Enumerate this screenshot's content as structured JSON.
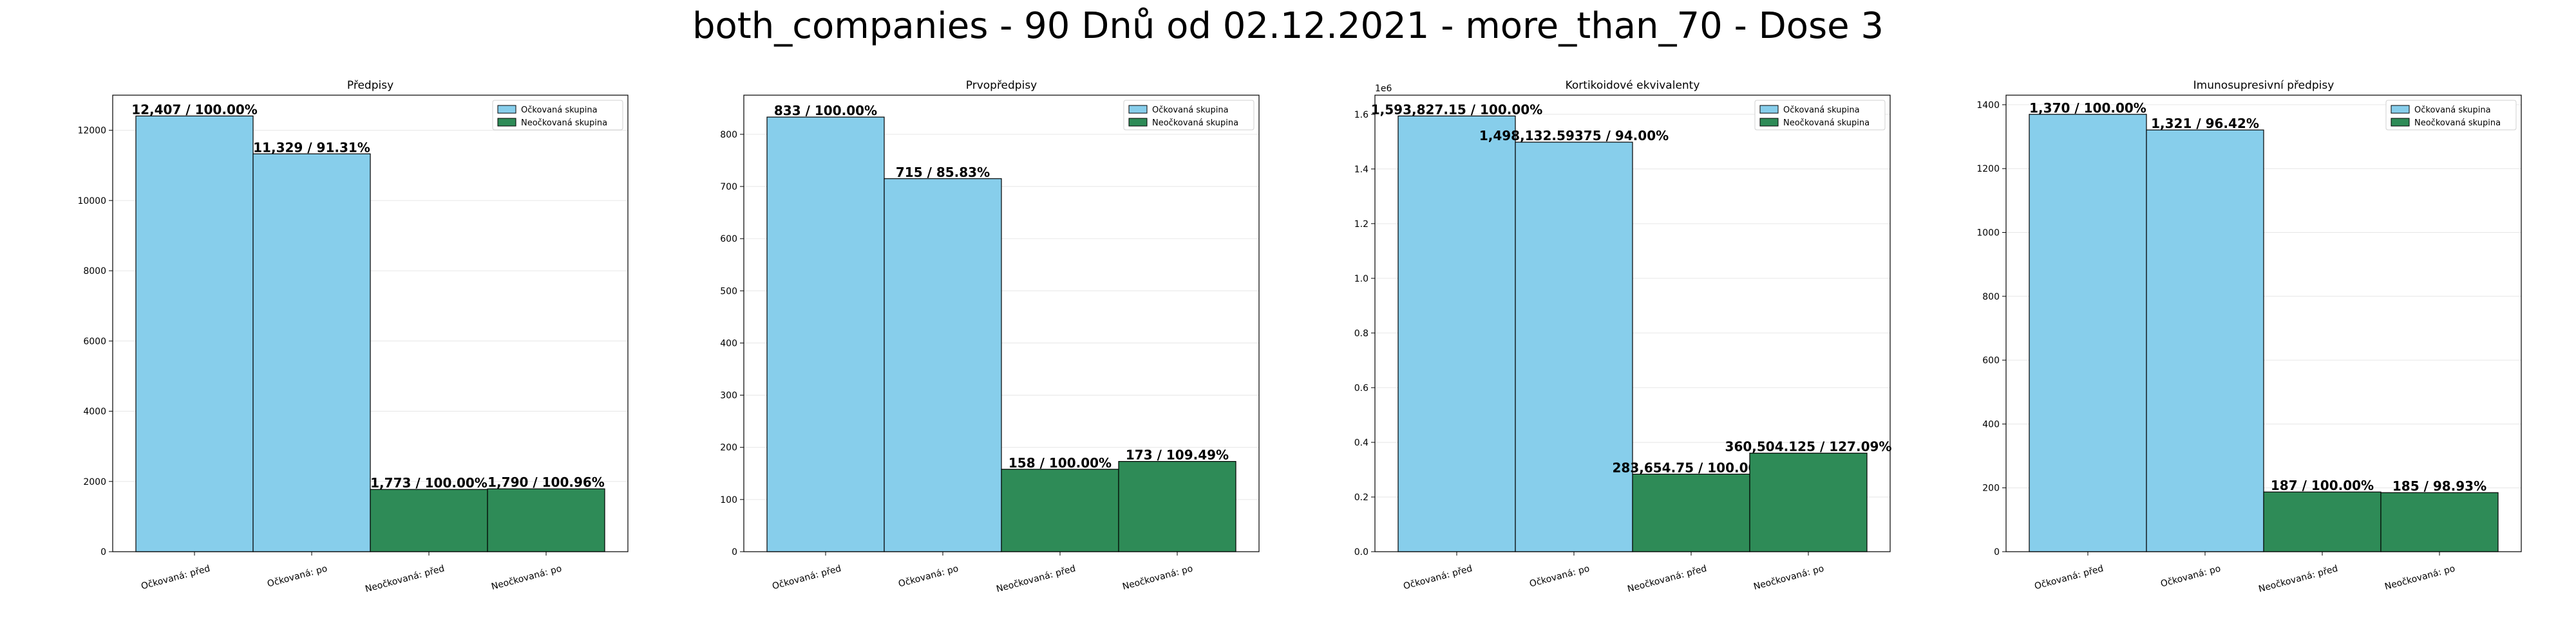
{
  "figure_title": "both_companies - 90 Dnů od 02.12.2021 - more_than_70 - Dose 3",
  "colors": {
    "vaccinated": "#87ceeb",
    "unvaccinated": "#2e8b57",
    "edge": "#000000",
    "grid": "#e6e6e6"
  },
  "chart_data": [
    {
      "type": "bar",
      "title": "Předpisy",
      "categories": [
        "Očkovaná: před",
        "Očkovaná: po",
        "Neočkovaná: před",
        "Neočkovaná: po"
      ],
      "values": [
        12407,
        11329,
        1773,
        1790
      ],
      "value_labels": [
        "12,407 / 100.00%",
        "11,329 / 91.31%",
        "1,773 / 100.00%",
        "1,790 / 100.96%"
      ],
      "groups": [
        "Očkovaná skupina",
        "Očkovaná skupina",
        "Neočkovaná skupina",
        "Neočkovaná skupina"
      ],
      "legend": [
        "Očkovaná skupina",
        "Neočkovaná skupina"
      ],
      "legend_position": "top-right",
      "ylim": [
        0,
        13000
      ],
      "yticks": [
        0,
        2000,
        4000,
        6000,
        8000,
        10000,
        12000
      ],
      "ytick_labels": [
        "0",
        "2000",
        "4000",
        "6000",
        "8000",
        "10000",
        "12000"
      ],
      "scale_label": "",
      "grid": true
    },
    {
      "type": "bar",
      "title": "Prvopředpisy",
      "categories": [
        "Očkovaná: před",
        "Očkovaná: po",
        "Neočkovaná: před",
        "Neočkovaná: po"
      ],
      "values": [
        833,
        715,
        158,
        173
      ],
      "value_labels": [
        "833 / 100.00%",
        "715 / 85.83%",
        "158 / 100.00%",
        "173 / 109.49%"
      ],
      "groups": [
        "Očkovaná skupina",
        "Očkovaná skupina",
        "Neočkovaná skupina",
        "Neočkovaná skupina"
      ],
      "legend": [
        "Očkovaná skupina",
        "Neočkovaná skupina"
      ],
      "legend_position": "top-right",
      "ylim": [
        0,
        875
      ],
      "yticks": [
        0,
        100,
        200,
        300,
        400,
        500,
        600,
        700,
        800
      ],
      "ytick_labels": [
        "0",
        "100",
        "200",
        "300",
        "400",
        "500",
        "600",
        "700",
        "800"
      ],
      "scale_label": "",
      "grid": true
    },
    {
      "type": "bar",
      "title": "Kortikoidové ekvivalenty",
      "categories": [
        "Očkovaná: před",
        "Očkovaná: po",
        "Neočkovaná: před",
        "Neočkovaná: po"
      ],
      "values": [
        1593827.15,
        1498132.59375,
        283654.75,
        360504.125
      ],
      "value_labels": [
        "1,593,827.15 / 100.00%",
        "1,498,132.59375 / 94.00%",
        "283,654.75 / 100.00%",
        "360,504.125 / 127.09%"
      ],
      "groups": [
        "Očkovaná skupina",
        "Očkovaná skupina",
        "Neočkovaná skupina",
        "Neočkovaná skupina"
      ],
      "legend": [
        "Očkovaná skupina",
        "Neočkovaná skupina"
      ],
      "legend_position": "top-right",
      "ylim": [
        0,
        1670000
      ],
      "yticks": [
        0,
        200000,
        400000,
        600000,
        800000,
        1000000,
        1200000,
        1400000,
        1600000
      ],
      "ytick_labels": [
        "0.0",
        "0.2",
        "0.4",
        "0.6",
        "0.8",
        "1.0",
        "1.2",
        "1.4",
        "1.6"
      ],
      "scale_label": "1e6",
      "grid": true
    },
    {
      "type": "bar",
      "title": "Imunosupresivní předpisy",
      "categories": [
        "Očkovaná: před",
        "Očkovaná: po",
        "Neočkovaná: před",
        "Neočkovaná: po"
      ],
      "values": [
        1370,
        1321,
        187,
        185
      ],
      "value_labels": [
        "1,370 / 100.00%",
        "1,321 / 96.42%",
        "187 / 100.00%",
        "185 / 98.93%"
      ],
      "groups": [
        "Očkovaná skupina",
        "Očkovaná skupina",
        "Neočkovaná skupina",
        "Neočkovaná skupina"
      ],
      "legend": [
        "Očkovaná skupina",
        "Neočkovaná skupina"
      ],
      "legend_position": "top-right",
      "ylim": [
        0,
        1430
      ],
      "yticks": [
        0,
        200,
        400,
        600,
        800,
        1000,
        1200,
        1400
      ],
      "ytick_labels": [
        "0",
        "200",
        "400",
        "600",
        "800",
        "1000",
        "1200",
        "1400"
      ],
      "scale_label": "",
      "grid": true
    }
  ]
}
